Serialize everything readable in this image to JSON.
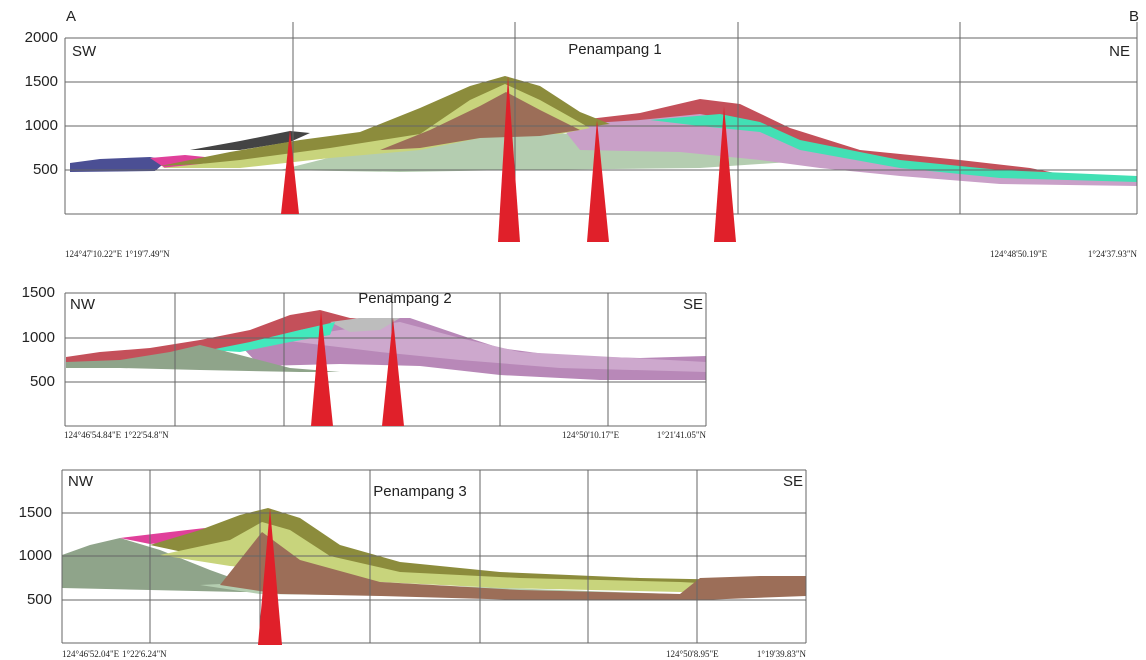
{
  "panels": [
    {
      "end_a": "A",
      "end_b": "B",
      "left": "SW",
      "right": "NE",
      "title": "Penampang 1",
      "yticks": [
        2000,
        1500,
        1000,
        500
      ],
      "lon_left": "124°47'10.22\"E",
      "lat_left": "1°19'7.49\"N",
      "lon_right": "124°48'50.19\"E",
      "lat_right": "1°24'37.93\"N"
    },
    {
      "left": "NW",
      "right": "SE",
      "title": "Penampang 2",
      "yticks": [
        1500,
        1000,
        500
      ],
      "lon_left": "124°46'54.84\"E",
      "lat_left": "1°22'54.8\"N",
      "lon_right": "124°50'10.17\"E",
      "lat_right": "1°21'41.05\"N"
    },
    {
      "left": "NW",
      "right": "SE",
      "title": "Penampang 3",
      "yticks": [
        1500,
        1000,
        500
      ],
      "lon_left": "124°46'52.04\"E",
      "lat_left": "1°22'6.24\"N",
      "lon_right": "124°50'8.95\"E",
      "lat_right": "1°19'39.83\"N"
    }
  ]
}
